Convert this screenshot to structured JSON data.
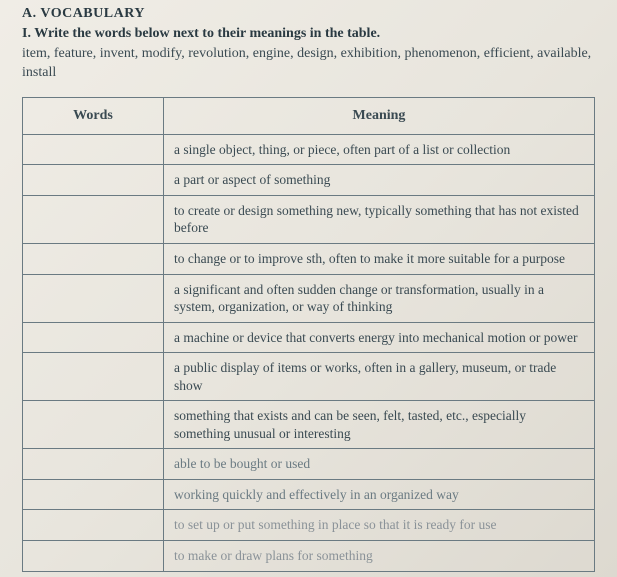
{
  "section_label": "A. VOCABULARY",
  "instruction": "I. Write the words below next to their meanings in the table.",
  "word_list": "item, feature, invent, modify, revolution, engine, design, exhibition, phenomenon, efficient, available, install",
  "table": {
    "columns": [
      "Words",
      "Meaning"
    ],
    "rows": [
      {
        "word": "",
        "meaning": "a single object, thing, or piece, often part of a list or collection"
      },
      {
        "word": "",
        "meaning": "a part or aspect of something"
      },
      {
        "word": "",
        "meaning": "to create or design something new, typically something that has not existed before"
      },
      {
        "word": "",
        "meaning": "to change or to improve sth, often to make it more suitable for a purpose"
      },
      {
        "word": "",
        "meaning": "a significant and often sudden change or transformation, usually in a system, organization, or way of thinking"
      },
      {
        "word": "",
        "meaning": "a machine or device that converts energy into mechanical motion or power"
      },
      {
        "word": "",
        "meaning": "a public display of items or works, often in a gallery, museum, or trade show"
      },
      {
        "word": "",
        "meaning": "something that exists and can be seen, felt, tasted, etc., especially something unusual or interesting"
      },
      {
        "word": "",
        "meaning": "able to be bought or used"
      },
      {
        "word": "",
        "meaning": "working quickly and effectively in an organized way"
      },
      {
        "word": "",
        "meaning": "to set up or put something in place so that it is ready for use"
      },
      {
        "word": "",
        "meaning": "to make or draw plans for something"
      }
    ]
  },
  "colors": {
    "text": "#3a4a52",
    "border": "#6a7a82",
    "bg_light": "#f0ede6",
    "bg_dark": "#ddd9d0"
  }
}
